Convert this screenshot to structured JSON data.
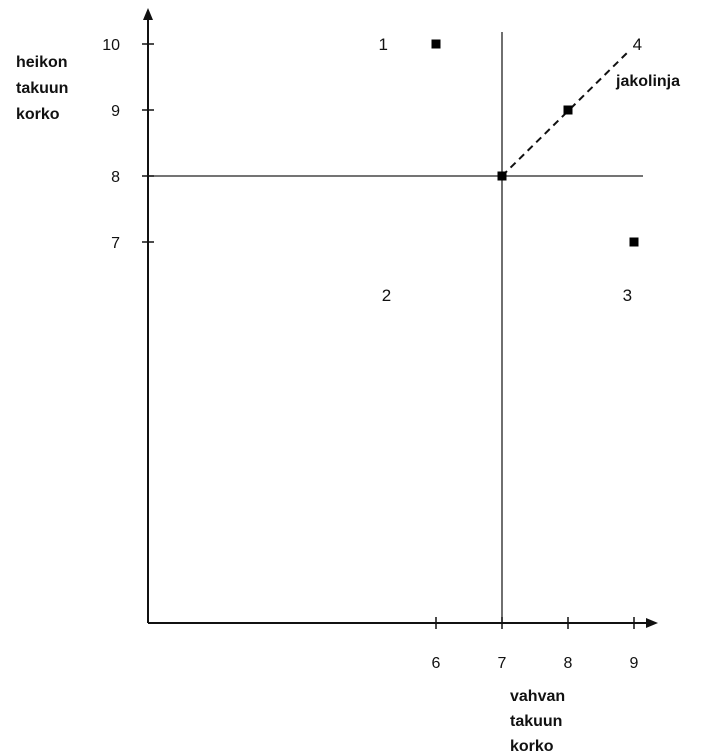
{
  "chart_data": {
    "type": "scatter",
    "title": "",
    "xlabel": [
      "vahvan",
      "takuun",
      "korko"
    ],
    "ylabel": [
      "heikon",
      "takuun",
      "korko"
    ],
    "x_ticks": [
      6,
      7,
      8,
      9
    ],
    "y_ticks": [
      7,
      8,
      9,
      10
    ],
    "points": [
      {
        "x": 6,
        "y": 10
      },
      {
        "x": 7,
        "y": 8
      },
      {
        "x": 8,
        "y": 9
      },
      {
        "x": 9,
        "y": 7
      }
    ],
    "vertical_line_x": 7,
    "horizontal_line_y": 8,
    "dividing_line": {
      "label": "jakolinja",
      "from": [
        7,
        8
      ],
      "to": [
        9,
        10
      ],
      "style": "dashed"
    },
    "regions": [
      {
        "label": "1",
        "x": 5.2,
        "y": 10
      },
      {
        "label": "2",
        "x": 5.25,
        "y": 6.2
      },
      {
        "label": "3",
        "x": 8.9,
        "y": 6.2
      },
      {
        "label": "4",
        "x": 9.05,
        "y": 10
      }
    ],
    "grid": false,
    "legend": "none"
  }
}
